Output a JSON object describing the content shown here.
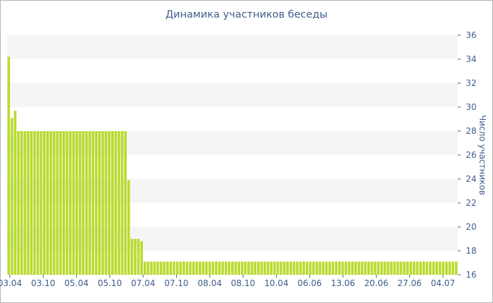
{
  "chart_data": {
    "type": "bar",
    "title": "Динамика участников беседы",
    "ylabel": "Число участников",
    "xlabel": "",
    "ylim": [
      16,
      36
    ],
    "yticks": [
      16,
      18,
      20,
      22,
      24,
      26,
      28,
      30,
      32,
      34,
      36
    ],
    "y_axis_position": "right",
    "grid": "alternating horizontal bands",
    "legend": "none",
    "x_tick_labels": [
      "03.04",
      "03.10",
      "05.04",
      "05.10",
      "07.04",
      "07.10",
      "08.04",
      "08.10",
      "10.04",
      "06.06",
      "13.06",
      "20.06",
      "27.06",
      "04.07"
    ],
    "values": [
      34.2,
      29.1,
      29.7,
      28.0,
      28.0,
      28.0,
      28.0,
      28.0,
      28.0,
      28.0,
      28.0,
      28.0,
      28.0,
      28.0,
      28.0,
      28.0,
      28.0,
      28.0,
      28.0,
      28.0,
      28.0,
      28.0,
      28.0,
      28.0,
      28.0,
      28.0,
      28.0,
      28.0,
      28.0,
      28.0,
      28.0,
      28.0,
      28.0,
      28.0,
      28.0,
      28.0,
      28.0,
      23.9,
      19.0,
      19.0,
      19.0,
      18.8,
      17.1,
      17.1,
      17.1,
      17.1,
      17.1,
      17.1,
      17.1,
      17.1,
      17.1,
      17.1,
      17.1,
      17.1,
      17.1,
      17.1,
      17.1,
      17.1,
      17.1,
      17.1,
      17.1,
      17.1,
      17.1,
      17.1,
      17.1,
      17.1,
      17.1,
      17.1,
      17.1,
      17.1,
      17.1,
      17.1,
      17.1,
      17.1,
      17.1,
      17.1,
      17.1,
      17.1,
      17.1,
      17.1,
      17.1,
      17.1,
      17.1,
      17.1,
      17.1,
      17.1,
      17.1,
      17.1,
      17.1,
      17.1,
      17.1,
      17.1,
      17.1,
      17.1,
      17.1,
      17.1,
      17.1,
      17.1,
      17.1,
      17.1,
      17.1,
      17.1,
      17.1,
      17.1,
      17.1,
      17.1,
      17.1,
      17.1,
      17.1,
      17.1,
      17.1,
      17.1,
      17.1,
      17.1,
      17.1,
      17.1,
      17.1,
      17.1,
      17.1,
      17.1,
      17.1,
      17.1,
      17.1,
      17.1,
      17.1,
      17.1,
      17.1,
      17.1,
      17.1,
      17.1,
      17.1,
      17.1,
      17.1,
      17.1,
      17.1,
      17.1,
      17.1,
      17.1,
      17.1
    ],
    "colors": {
      "bar": "#b8db2e",
      "band": "#f5f5f5",
      "axis_text": "#3e5c8a",
      "tick": "#3e5c8a"
    }
  }
}
